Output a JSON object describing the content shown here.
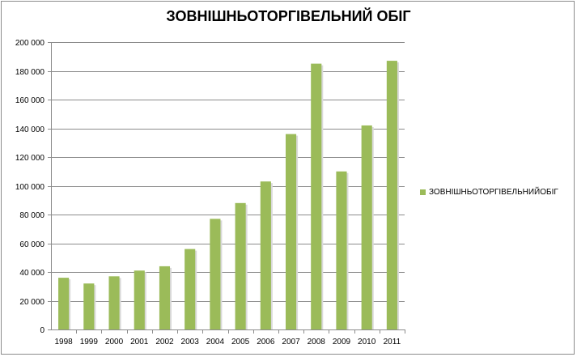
{
  "chart_data": {
    "type": "bar",
    "title": "ЗОВНІШНЬОТОРГІВЕЛЬНИЙ ОБІГ",
    "xlabel": "",
    "ylabel": "",
    "categories": [
      "1998",
      "1999",
      "2000",
      "2001",
      "2002",
      "2003",
      "2004",
      "2005",
      "2006",
      "2007",
      "2008",
      "2009",
      "2010",
      "2011"
    ],
    "series": [
      {
        "name": "ЗОВНІШНЬОТОРГІВЕЛЬНИЙОБІГ",
        "values": [
          36000,
          32000,
          37000,
          41000,
          44000,
          56000,
          77000,
          88000,
          103000,
          136000,
          185000,
          110000,
          142000,
          187000
        ],
        "color": "#9bbb59"
      }
    ],
    "ylim": [
      0,
      200000
    ],
    "yticks": [
      0,
      20000,
      40000,
      60000,
      80000,
      100000,
      120000,
      140000,
      160000,
      180000,
      200000
    ],
    "ytick_labels": [
      "0",
      "20 000",
      "40 000",
      "60 000",
      "80 000",
      "100 000",
      "120 000",
      "140 000",
      "160 000",
      "180 000",
      "200 000"
    ],
    "grid": true,
    "legend_position": "right",
    "gridline_color": "#8c8c8c",
    "axis_color": "#8c8c8c"
  }
}
